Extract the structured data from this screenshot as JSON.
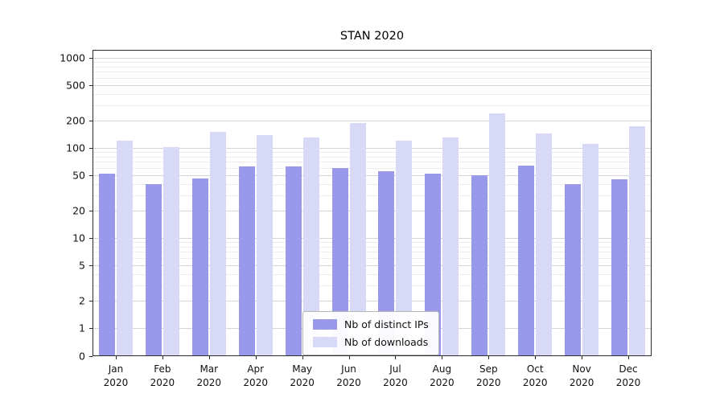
{
  "chart_data": {
    "type": "bar",
    "title": "STAN 2020",
    "categories": [
      "Jan 2020",
      "Feb 2020",
      "Mar 2020",
      "Apr 2020",
      "May 2020",
      "Jun 2020",
      "Jul 2020",
      "Aug 2020",
      "Sep 2020",
      "Oct 2020",
      "Nov 2020",
      "Dec 2020"
    ],
    "series": [
      {
        "name": "Nb of distinct IPs",
        "color": "#9999ec",
        "values": [
          52,
          40,
          46,
          62,
          62,
          60,
          55,
          52,
          50,
          63,
          40,
          45
        ]
      },
      {
        "name": "Nb of downloads",
        "color": "#d8d8f7",
        "values": [
          120,
          102,
          150,
          140,
          130,
          190,
          120,
          130,
          240,
          145,
          110,
          175
        ]
      }
    ],
    "yscale": "symlog",
    "y_ticks": [
      0,
      1,
      2,
      5,
      10,
      20,
      50,
      100,
      200,
      500,
      1000
    ],
    "ylim": [
      0,
      1200
    ],
    "grid": true,
    "legend_position": "bottom-center"
  }
}
